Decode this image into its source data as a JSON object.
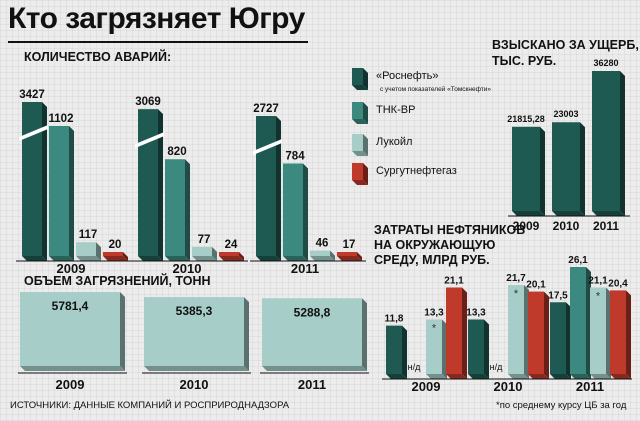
{
  "title": "Кто загрязняет Югру",
  "colors": {
    "rosneft": "#1e5a52",
    "tnk": "#3c8a7f",
    "lukoil": "#a6cdc8",
    "surgut": "#c03a2c",
    "volume": "#a6cdc8"
  },
  "legend": [
    {
      "key": "rosneft",
      "label": "«Роснефть»",
      "note": "с учетом показателей «Томскнефти»",
      "color": "#1e5a52"
    },
    {
      "key": "tnk",
      "label": "ТНК-ВР",
      "note": "",
      "color": "#3c8a7f"
    },
    {
      "key": "lukoil",
      "label": "Лукойл",
      "note": "",
      "color": "#a6cdc8"
    },
    {
      "key": "surgut",
      "label": "Сургутнефтегаз",
      "note": "",
      "color": "#c03a2c"
    }
  ],
  "source": "ИСТОЧНИКИ: ДАННЫЕ КОМПАНИЙ И РОСПРИРОДНАДЗОРА",
  "footnote": "*по среднему курсу ЦБ за год",
  "chart_data": [
    {
      "id": "accidents",
      "type": "bar",
      "title": "КОЛИЧЕСТВО АВАРИЙ:",
      "categories": [
        "2009",
        "2010",
        "2011"
      ],
      "series": [
        {
          "name": "«Роснефть»",
          "values": [
            3427,
            3069,
            2727
          ],
          "labels": [
            "3427",
            "3069",
            "2727"
          ]
        },
        {
          "name": "ТНК-ВР",
          "values": [
            1102,
            820,
            784
          ],
          "labels": [
            "1102",
            "820",
            "784"
          ]
        },
        {
          "name": "Лукойл",
          "values": [
            117,
            77,
            46
          ],
          "labels": [
            "117",
            "77",
            "46"
          ]
        },
        {
          "name": "Сургутнефтегаз",
          "values": [
            20,
            24,
            17
          ],
          "labels": [
            "20",
            "24",
            "17"
          ]
        }
      ],
      "axis_break": true
    },
    {
      "id": "pollution-volume",
      "type": "bar",
      "title": "ОБЪЕМ ЗАГРЯЗНЕНИЙ, ТОНН",
      "categories": [
        "2009",
        "2010",
        "2011"
      ],
      "values": [
        5781.4,
        5385.3,
        5288.8
      ],
      "labels": [
        "5781,4",
        "5385,3",
        "5288,8"
      ]
    },
    {
      "id": "damages",
      "type": "bar",
      "title": "ВЗЫСКАНО ЗА УЩЕРБ, ТЫС. РУБ.",
      "title_lines": [
        "ВЗЫСКАНО ЗА УЩЕРБ,",
        "ТЫС. РУБ."
      ],
      "categories": [
        "2009",
        "2010",
        "2011"
      ],
      "values": [
        21815.28,
        23003,
        36280
      ],
      "labels": [
        "21815,28",
        "23003",
        "36280"
      ]
    },
    {
      "id": "env-spending",
      "type": "bar",
      "title": "ЗАТРАТЫ НЕФТЯНИКОВ НА ОКРУЖАЮЩУЮ СРЕДУ, МЛРД РУБ.",
      "title_lines": [
        "ЗАТРАТЫ НЕФТЯНИКОВ",
        "НА ОКРУЖАЮЩУЮ",
        "СРЕДУ, МЛРД РУБ."
      ],
      "categories": [
        "2009",
        "2010",
        "2011"
      ],
      "series": [
        {
          "name": "«Роснефть»",
          "values": [
            11.8,
            13.3,
            17.5
          ],
          "labels": [
            "11,8",
            "13,3",
            "17,5"
          ]
        },
        {
          "name": "ТНК-ВР",
          "values": [
            null,
            null,
            26.1
          ],
          "labels": [
            "н/д",
            "н/д",
            "26,1"
          ]
        },
        {
          "name": "Лукойл",
          "values": [
            13.3,
            21.7,
            21.1
          ],
          "labels": [
            "13,3",
            "21,7",
            "21,1"
          ],
          "asterisk": true
        },
        {
          "name": "Сургутнефтегаз",
          "values": [
            21.1,
            20.1,
            20.4
          ],
          "labels": [
            "21,1",
            "20,1",
            "20,4"
          ]
        }
      ]
    }
  ]
}
